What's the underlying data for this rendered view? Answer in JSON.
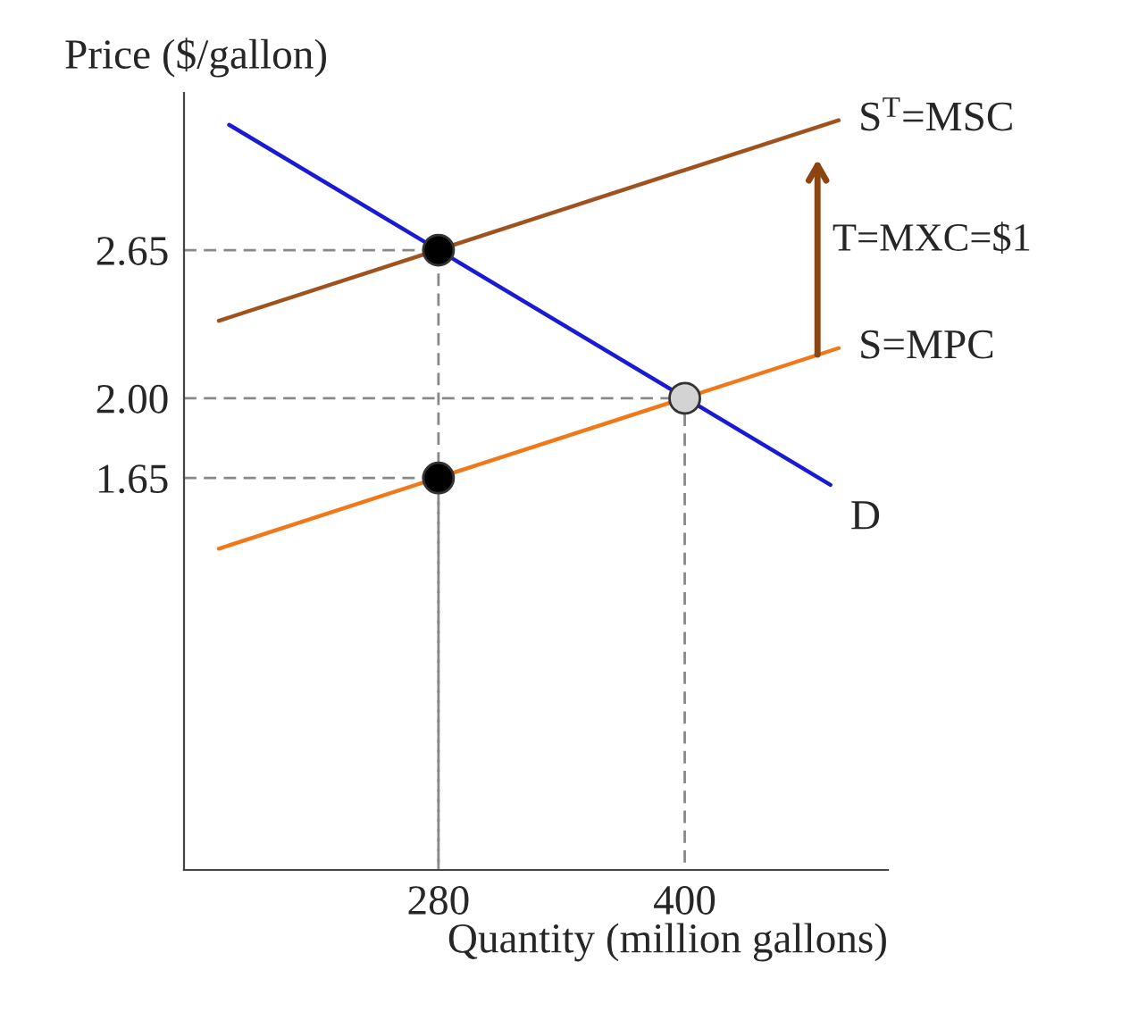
{
  "chart_data": {
    "type": "line",
    "xlabel": "Quantity (million gallons)",
    "ylabel": "Price ($/gallon)",
    "xlim": [
      156,
      499
    ],
    "ylim": [
      -0.07,
      3.34
    ],
    "xticks": [
      280,
      400
    ],
    "yticks": [
      1.65,
      {
        "value": 2.0,
        "label": "2.00"
      },
      2.65
    ],
    "grid": false,
    "legend": false,
    "series": [
      {
        "name": "D",
        "color": "#1a1ad6",
        "x": [
          178,
          471
        ],
        "values": [
          3.2,
          1.62
        ]
      },
      {
        "name": "S=MPC",
        "color": "#f07818",
        "x": [
          173,
          475
        ],
        "values": [
          1.34,
          2.22
        ]
      },
      {
        "name": "S$^{T}$=MSC",
        "color": "#a0521e",
        "x": [
          173,
          475
        ],
        "values": [
          2.34,
          3.22
        ]
      },
      {
        "color": "#888888",
        "line_style": "dashed",
        "x": [
          156,
          280,
          280
        ],
        "values": [
          2.65,
          2.65,
          -0.07
        ]
      },
      {
        "color": "#888888",
        "line_style": "dashed",
        "x": [
          156,
          280,
          280
        ],
        "values": [
          1.65,
          1.65,
          -0.07
        ]
      },
      {
        "color": "#888888",
        "line_style": "dashed",
        "x": [
          156,
          400,
          400
        ],
        "values": [
          2.0,
          2.0,
          -0.07
        ]
      },
      {
        "type": "scatter",
        "marker": "circle",
        "x": [
          280,
          280,
          400
        ],
        "values": [
          2.65,
          1.65,
          2.0
        ],
        "colors": [
          "#000000",
          "#000000",
          "#d3d3d3"
        ]
      }
    ],
    "annotations": [
      "T=MXC=$1"
    ]
  }
}
